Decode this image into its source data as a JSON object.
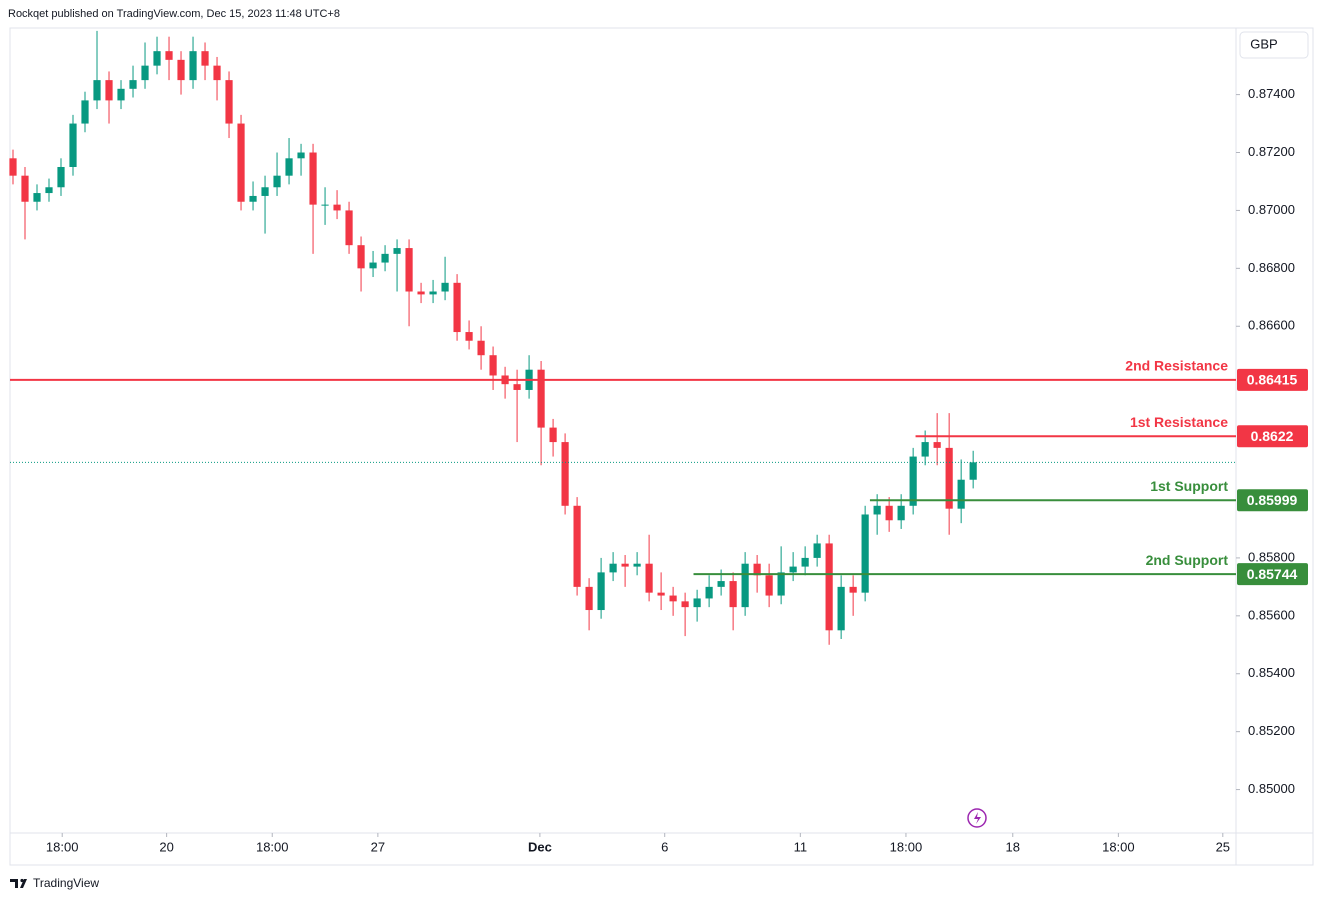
{
  "header": {
    "publisher": "Rockqet published on TradingView.com, Dec 15, 2023 11:48 UTC+8",
    "currency": "GBP",
    "footer": "TradingView"
  },
  "chart_data": {
    "type": "candlestick",
    "up_color": "#089981",
    "down_color": "#f23645",
    "xlim": [
      -0.25,
      101.9
    ],
    "xticks": [
      {
        "value": 4.1,
        "label": "18:00"
      },
      {
        "value": 12.8,
        "label": "20"
      },
      {
        "value": 21.6,
        "label": "18:00"
      },
      {
        "value": 30.4,
        "label": "27"
      },
      {
        "value": 43.9,
        "label": "Dec"
      },
      {
        "value": 54.3,
        "label": "6"
      },
      {
        "value": 65.6,
        "label": "11"
      },
      {
        "value": 74.4,
        "label": "18:00"
      },
      {
        "value": 83.3,
        "label": "18"
      },
      {
        "value": 92.1,
        "label": "18:00"
      },
      {
        "value": 100.8,
        "label": "25"
      }
    ],
    "ylim": [
      0.8485,
      0.8763
    ],
    "yticks": [
      {
        "value": 0.874,
        "label": "0.87400"
      },
      {
        "value": 0.872,
        "label": "0.87200"
      },
      {
        "value": 0.87,
        "label": "0.87000"
      },
      {
        "value": 0.868,
        "label": "0.86800"
      },
      {
        "value": 0.866,
        "label": "0.86600"
      },
      {
        "value": 0.858,
        "label": "0.85800"
      },
      {
        "value": 0.856,
        "label": "0.85600"
      },
      {
        "value": 0.854,
        "label": "0.85400"
      },
      {
        "value": 0.852,
        "label": "0.85200"
      },
      {
        "value": 0.85,
        "label": "0.85000"
      }
    ],
    "open": [
      0.8718,
      0.8712,
      0.8703,
      0.8706,
      0.8708,
      0.8715,
      0.873,
      0.8738,
      0.8745,
      0.8738,
      0.8742,
      0.8745,
      0.875,
      0.8755,
      0.8752,
      0.8745,
      0.8755,
      0.875,
      0.8745,
      0.873,
      0.8703,
      0.8705,
      0.8708,
      0.8712,
      0.8718,
      0.872,
      0.8702,
      0.8702,
      0.87,
      0.8688,
      0.868,
      0.8682,
      0.8685,
      0.8687,
      0.8672,
      0.8671,
      0.8672,
      0.8675,
      0.8658,
      0.8655,
      0.865,
      0.8643,
      0.864,
      0.8638,
      0.8645,
      0.8625,
      0.862,
      0.8598,
      0.857,
      0.8562,
      0.8575,
      0.8578,
      0.8577,
      0.8578,
      0.8568,
      0.8567,
      0.8565,
      0.8563,
      0.8566,
      0.857,
      0.8572,
      0.8563,
      0.8578,
      0.8574,
      0.8567,
      0.8575,
      0.8577,
      0.858,
      0.8585,
      0.8555,
      0.857,
      0.8568,
      0.8595,
      0.8598,
      0.8593,
      0.8598,
      0.8615,
      0.862,
      0.8618,
      0.8597,
      0.8607
    ],
    "high": [
      0.8721,
      0.8715,
      0.8709,
      0.8711,
      0.8718,
      0.8733,
      0.8741,
      0.8762,
      0.8748,
      0.8745,
      0.875,
      0.8758,
      0.876,
      0.876,
      0.8755,
      0.876,
      0.8758,
      0.8753,
      0.8748,
      0.8733,
      0.871,
      0.8712,
      0.872,
      0.8725,
      0.8723,
      0.8723,
      0.8708,
      0.8707,
      0.8703,
      0.8691,
      0.8686,
      0.8688,
      0.869,
      0.869,
      0.8675,
      0.8676,
      0.8684,
      0.8678,
      0.8662,
      0.866,
      0.8653,
      0.8646,
      0.8645,
      0.865,
      0.8648,
      0.8628,
      0.8623,
      0.8601,
      0.8573,
      0.858,
      0.8582,
      0.8581,
      0.8582,
      0.8588,
      0.8575,
      0.857,
      0.8568,
      0.8569,
      0.8574,
      0.8576,
      0.8575,
      0.8582,
      0.8581,
      0.8578,
      0.8584,
      0.8582,
      0.8584,
      0.8588,
      0.8588,
      0.8574,
      0.8574,
      0.8598,
      0.8602,
      0.8601,
      0.8602,
      0.8618,
      0.8624,
      0.863,
      0.863,
      0.8614,
      0.8617
    ],
    "low": [
      0.8709,
      0.869,
      0.87,
      0.8703,
      0.8705,
      0.8712,
      0.8727,
      0.8735,
      0.873,
      0.8735,
      0.8739,
      0.8742,
      0.8747,
      0.8745,
      0.874,
      0.8742,
      0.8745,
      0.8738,
      0.8725,
      0.87,
      0.87,
      0.8692,
      0.8705,
      0.8709,
      0.8712,
      0.8685,
      0.8695,
      0.8697,
      0.8685,
      0.8672,
      0.8677,
      0.8679,
      0.8672,
      0.866,
      0.8668,
      0.8668,
      0.8669,
      0.8655,
      0.8652,
      0.8645,
      0.8638,
      0.8635,
      0.862,
      0.8635,
      0.8612,
      0.8615,
      0.8595,
      0.8567,
      0.8555,
      0.8559,
      0.8572,
      0.857,
      0.8574,
      0.8565,
      0.8562,
      0.856,
      0.8553,
      0.8558,
      0.8563,
      0.8567,
      0.8555,
      0.856,
      0.8568,
      0.8563,
      0.8564,
      0.8572,
      0.8574,
      0.8577,
      0.855,
      0.8552,
      0.856,
      0.8565,
      0.8588,
      0.8589,
      0.859,
      0.8595,
      0.8612,
      0.8612,
      0.8588,
      0.8592,
      0.8604
    ],
    "close": [
      0.8712,
      0.8703,
      0.8706,
      0.8708,
      0.8715,
      0.873,
      0.8738,
      0.8745,
      0.8738,
      0.8742,
      0.8745,
      0.875,
      0.8755,
      0.8752,
      0.8745,
      0.8755,
      0.875,
      0.8745,
      0.873,
      0.8703,
      0.8705,
      0.8708,
      0.8712,
      0.8718,
      0.872,
      0.8702,
      0.8702,
      0.87,
      0.8688,
      0.868,
      0.8682,
      0.8685,
      0.8687,
      0.8672,
      0.8671,
      0.8672,
      0.8675,
      0.8658,
      0.8655,
      0.865,
      0.8643,
      0.864,
      0.8638,
      0.8645,
      0.8625,
      0.862,
      0.8598,
      0.857,
      0.8562,
      0.8575,
      0.8578,
      0.8577,
      0.8578,
      0.8568,
      0.8567,
      0.8565,
      0.8563,
      0.8566,
      0.857,
      0.8572,
      0.8563,
      0.8578,
      0.8574,
      0.8567,
      0.8575,
      0.8577,
      0.858,
      0.8585,
      0.8555,
      0.857,
      0.8568,
      0.8595,
      0.8598,
      0.8593,
      0.8598,
      0.8615,
      0.862,
      0.8618,
      0.8597,
      0.8607,
      0.8613
    ],
    "levels": [
      {
        "name": "2nd Resistance",
        "value": 0.86415,
        "color": "#f23645",
        "x_start": -0.25
      },
      {
        "name": "1st Resistance",
        "value": 0.8622,
        "color": "#f23645",
        "x_start": 75.2
      },
      {
        "name": "1st Support",
        "value": 0.85999,
        "color": "#388e3c",
        "x_start": 71.4
      },
      {
        "name": "2nd Support",
        "value": 0.85744,
        "color": "#388e3c",
        "x_start": 56.7
      }
    ]
  }
}
